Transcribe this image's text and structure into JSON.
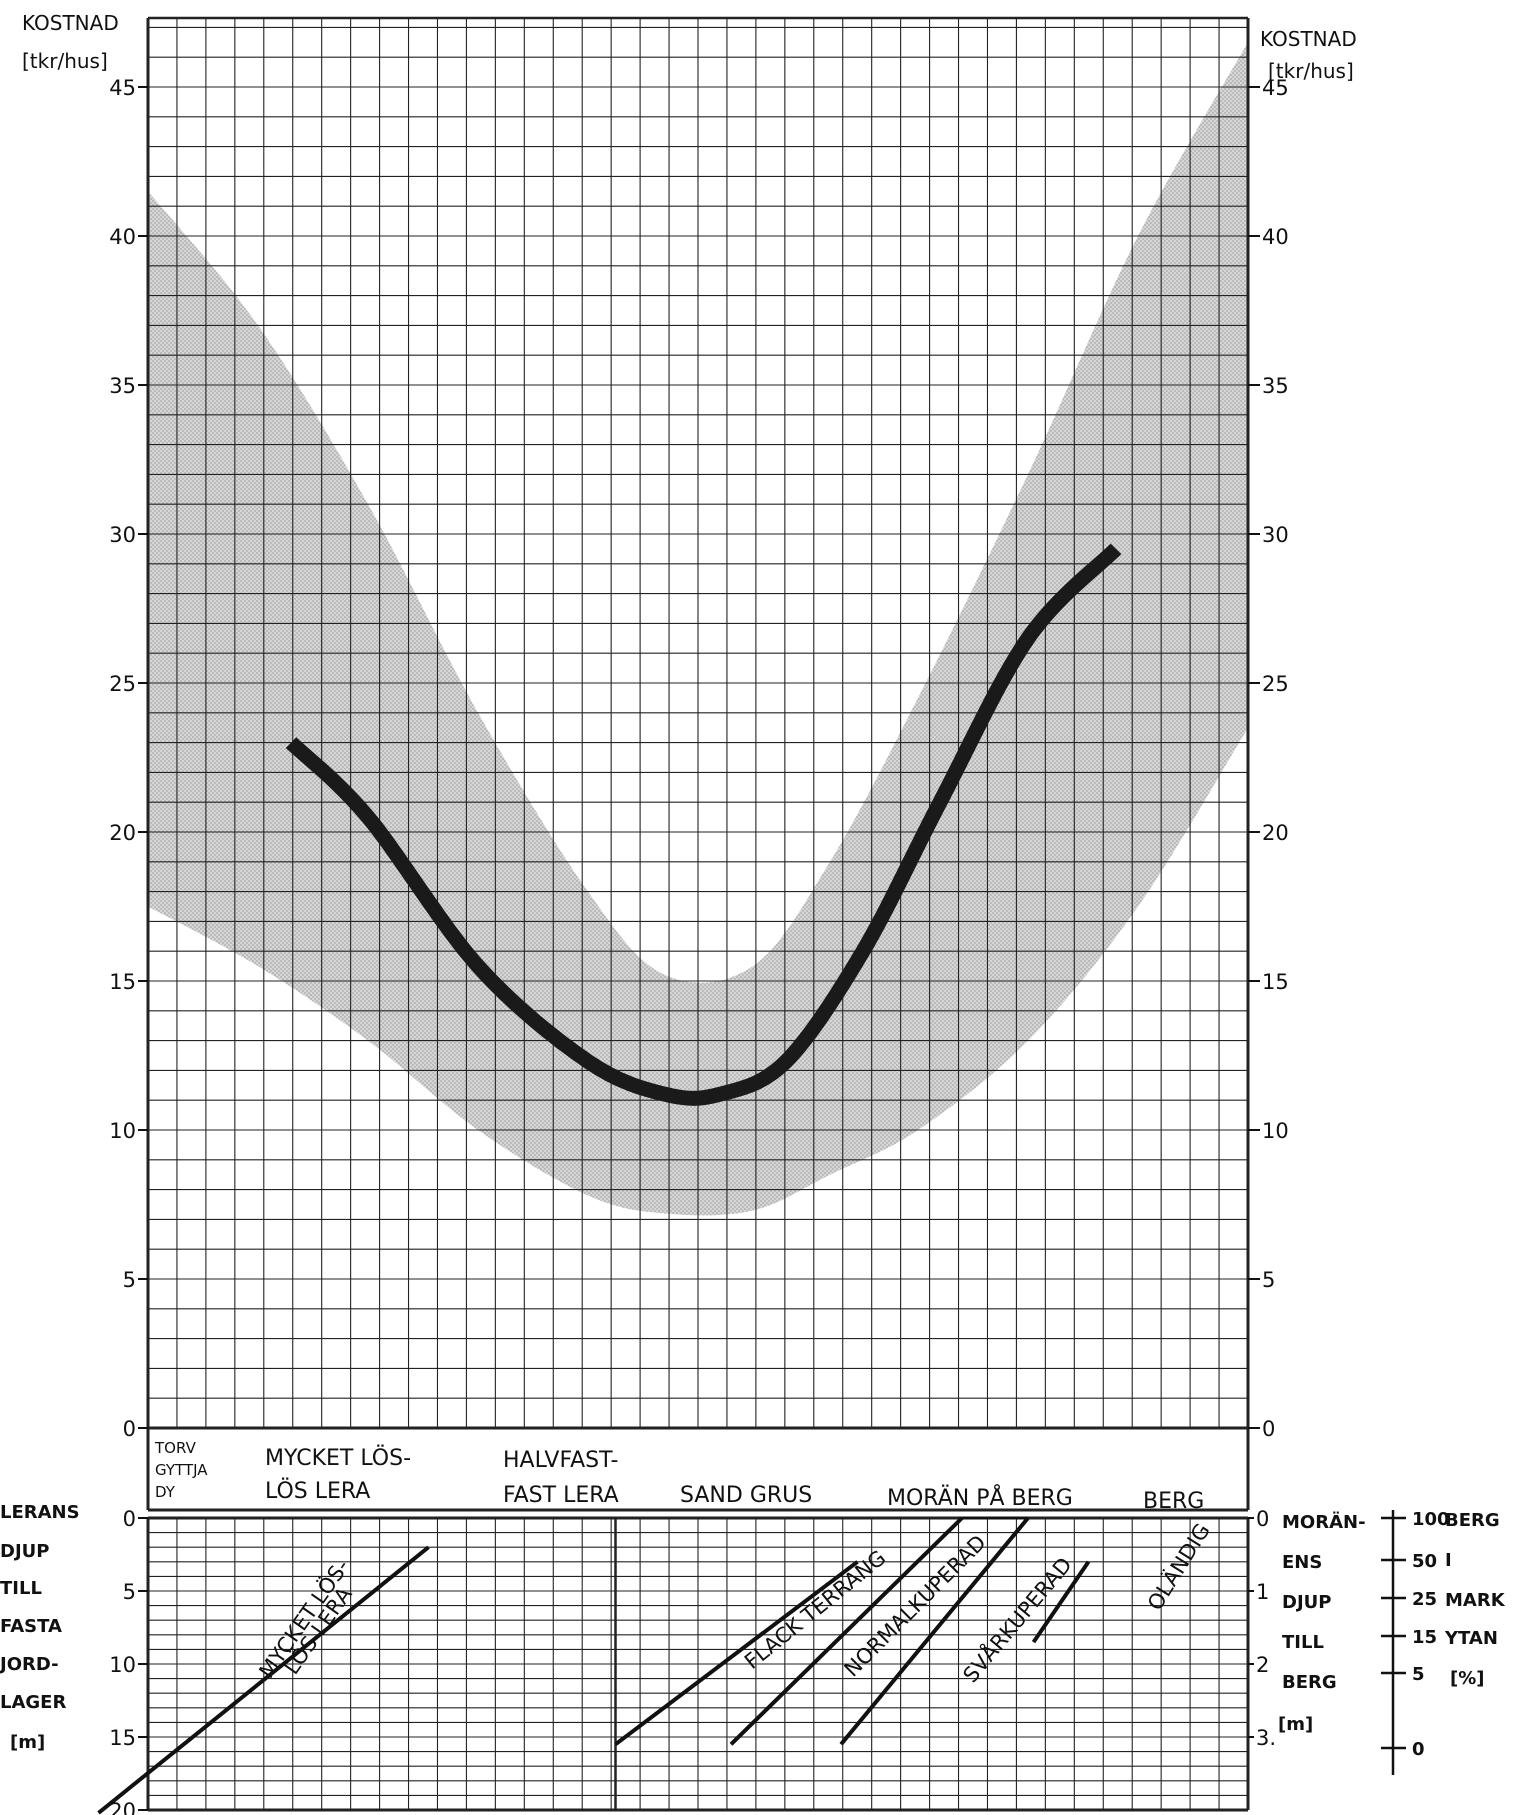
{
  "chart_data": [
    {
      "type": "line",
      "left_axis": {
        "title": "KOSTNAD",
        "unit": "[tkr/hus]",
        "ticks": [
          "0",
          "5",
          "10",
          "15",
          "20",
          "25",
          "30",
          "35",
          "40",
          "45"
        ]
      },
      "right_axis": {
        "title": "KOSTNAD",
        "unit": "[tkr/hus]",
        "ticks": [
          "0",
          "5",
          "10",
          "15",
          "20",
          "25",
          "30",
          "35",
          "40",
          "45"
        ]
      },
      "ylim": [
        0,
        47
      ],
      "xlim": [
        0,
        100
      ],
      "grid": true,
      "series": [
        {
          "x": [
            13,
            20,
            30,
            40,
            47,
            52,
            58,
            65,
            72,
            80,
            88
          ],
          "values": [
            23,
            20.5,
            15.5,
            12.3,
            11.2,
            11.2,
            12.3,
            16,
            21,
            26.5,
            29.5
          ]
        }
      ],
      "band": {
        "x": [
          0,
          10,
          20,
          30,
          40,
          47,
          55,
          62,
          70,
          80,
          90,
          100
        ],
        "upper": [
          41.5,
          37,
          31,
          24,
          18,
          15.2,
          15.5,
          19,
          24.5,
          32,
          40,
          46.5
        ],
        "lower": [
          17.5,
          15.5,
          13,
          10,
          7.8,
          7.2,
          7.3,
          8.5,
          10,
          13,
          17.5,
          23.5
        ]
      },
      "soil_categories": [
        {
          "line1": "TORV",
          "line2": "GYTTJA",
          "line3": "DY"
        },
        {
          "line1": "MYCKET LÖS-",
          "line2": "LÖS LERA"
        },
        {
          "line1": "HALVFAST-",
          "line2": "FAST LERA"
        },
        {
          "line1": "SAND GRUS"
        },
        {
          "line1": "MORÄN PÅ BERG"
        },
        {
          "line1": "BERG"
        }
      ]
    },
    {
      "type": "line",
      "left_axis": {
        "labels": [
          "LERANS",
          "DJUP",
          "TILL",
          "FASTA",
          "JORD-",
          "LAGER",
          "[m]"
        ],
        "ticks": [
          "0",
          "5",
          "10",
          "15",
          "20"
        ]
      },
      "right_axis": {
        "labels": [
          "MORÄN-",
          "ENS",
          "DJUP",
          "TILL",
          "BERG",
          "[m]"
        ],
        "ticks": [
          "0",
          "1",
          "2",
          "3."
        ]
      },
      "far_right_scale": {
        "ticks": [
          "100",
          "50",
          "25",
          "15",
          "5",
          "0"
        ],
        "labels": [
          "BERG",
          "I",
          "MARK",
          "YTAN",
          "[%]"
        ]
      },
      "series": [
        {
          "name": "MYCKET LÖS-",
          "name2": "LÖS LERA"
        },
        {
          "name": "FLACK TERRÄNG"
        },
        {
          "name": "NORMALKUPERAD"
        },
        {
          "name": "SVÅRKUPERAD"
        },
        {
          "name": "OLÄNDIG"
        }
      ]
    }
  ]
}
